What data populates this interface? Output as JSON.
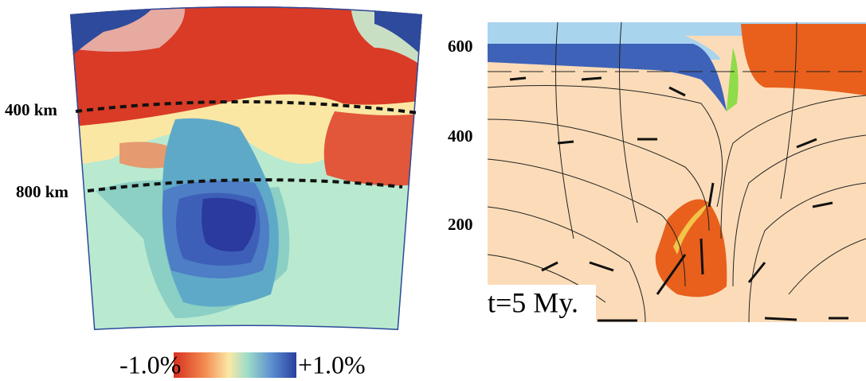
{
  "left_panel": {
    "depth_labels": [
      "400 km",
      "800 km"
    ],
    "colorbar": {
      "min_label": "-1.0%",
      "max_label": "+1.0%"
    }
  },
  "right_panel": {
    "axis_labels": [
      "600",
      "400",
      "200"
    ],
    "time_label": "t=5 My."
  }
}
